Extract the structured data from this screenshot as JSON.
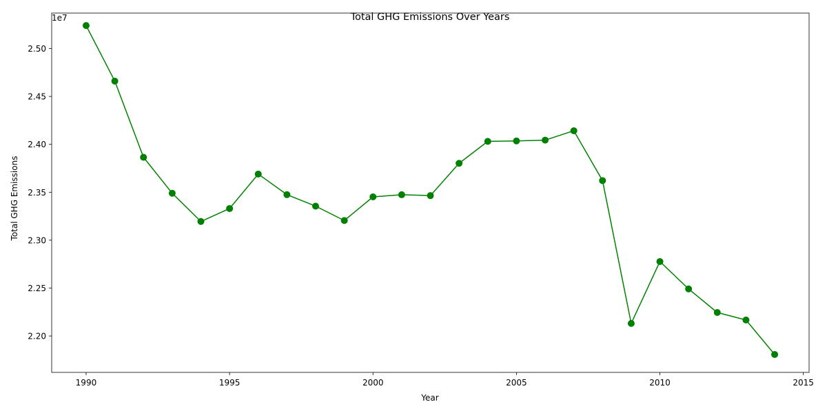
{
  "chart_data": {
    "type": "line",
    "title": "Total GHG Emissions Over Years",
    "xlabel": "Year",
    "ylabel": "Total GHG Emissions",
    "y_offset_label": "1e7",
    "x": [
      1990,
      1991,
      1992,
      1993,
      1994,
      1995,
      1996,
      1997,
      1998,
      1999,
      2000,
      2001,
      2002,
      2003,
      2004,
      2005,
      2006,
      2007,
      2008,
      2009,
      2010,
      2011,
      2012,
      2013,
      2014
    ],
    "series": [
      {
        "values": [
          25240000,
          24660000,
          23865000,
          23490000,
          23195000,
          23330000,
          23690000,
          23475000,
          23355000,
          23205000,
          23452000,
          23474000,
          23465000,
          23802000,
          24031000,
          24036000,
          24044000,
          24142000,
          23622000,
          22131000,
          22777000,
          22491000,
          22245000,
          22167000,
          21807000
        ],
        "color": "#008000",
        "marker": "circle"
      }
    ],
    "xlim": [
      1988.8,
      2015.2
    ],
    "ylim": [
      21620000,
      25370000
    ],
    "xticks": [
      1990,
      1995,
      2000,
      2005,
      2010,
      2015
    ],
    "xtick_labels": [
      "1990",
      "1995",
      "2000",
      "2005",
      "2010",
      "2015"
    ],
    "yticks": [
      22000000,
      22500000,
      23000000,
      23500000,
      24000000,
      24500000,
      25000000
    ],
    "ytick_labels": [
      "2.20",
      "2.25",
      "2.30",
      "2.35",
      "2.40",
      "2.45",
      "2.50"
    ],
    "grid": false,
    "legend": "none"
  }
}
